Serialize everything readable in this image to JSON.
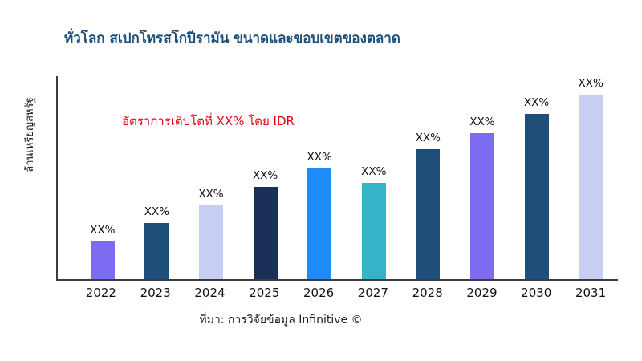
{
  "chart_data": {
    "type": "bar",
    "title": "ทั่วโลก สเปกโทรสโกปีรามัน ขนาดและขอบเขตของตลาด",
    "ylabel": "ล้านเหรียญสหรัฐ",
    "xlabel": "",
    "annotation": "อัตราการเติบโตที่ XX% โดย IDR",
    "source": "ที่มา: การวิจัยข้อมูล Infinitive ©",
    "categories": [
      "2022",
      "2023",
      "2024",
      "2025",
      "2026",
      "2027",
      "2028",
      "2029",
      "2030",
      "2031"
    ],
    "values": [
      47,
      70,
      92,
      115,
      138,
      120,
      162,
      182,
      206,
      230
    ],
    "bar_labels": [
      "XX%",
      "XX%",
      "XX%",
      "XX%",
      "XX%",
      "XX%",
      "XX%",
      "XX%",
      "XX%",
      "XX%"
    ],
    "bar_colors": [
      "#7c6cf2",
      "#1f4e79",
      "#c8cdf4",
      "#1a3058",
      "#1d8cf8",
      "#35b4c9",
      "#1f4e79",
      "#7c6cf2",
      "#1f4e79",
      "#c8cdf4"
    ],
    "ylim": [
      0,
      255
    ],
    "grid": false,
    "legend": false
  },
  "colors": {
    "title": "#1b4f7c",
    "annotation": "#e50012",
    "axis": "#3c3c3c",
    "text": "#111111",
    "background": "#ffffff"
  }
}
